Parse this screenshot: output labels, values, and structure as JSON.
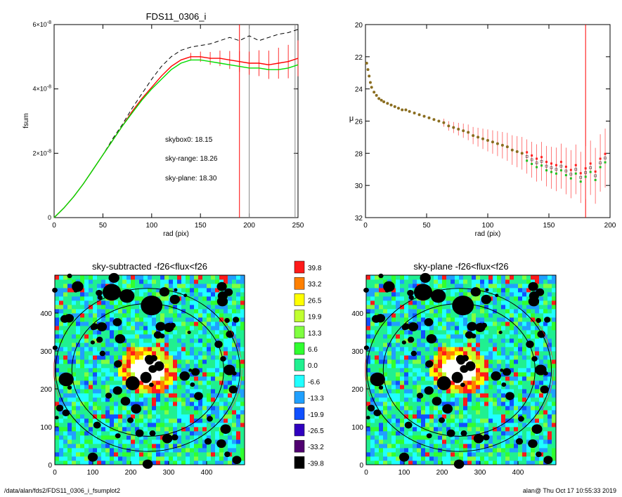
{
  "footer": {
    "path": "/data/alan/fds2/FDS11_0306_i_fsumplot2",
    "user": "alan@  Thu Oct 17 10:55:33 2019"
  },
  "colors": {
    "black": "#000000",
    "red": "#ff0000",
    "green": "#00dd00",
    "grey": "#888888",
    "olive": "#8a6d1f"
  },
  "chart_data": [
    {
      "type": "line",
      "title": "FDS11_0306_i",
      "xlabel": "rad (pix)",
      "ylabel": "fsum",
      "xlim": [
        0,
        250
      ],
      "ylim": [
        0,
        6e-08
      ],
      "x_ticks": [
        "0",
        "50",
        "100",
        "150",
        "200",
        "250"
      ],
      "y_ticks": [
        {
          "value": 0,
          "base": "0",
          "exp": ""
        },
        {
          "value": 2e-08,
          "base": "2×10",
          "exp": "-8"
        },
        {
          "value": 4e-08,
          "base": "4×10",
          "exp": "-8"
        },
        {
          "value": 6e-08,
          "base": "6×10",
          "exp": "-8"
        }
      ],
      "annotations": [
        {
          "text": "skybox0: 18.15",
          "color": "#000000"
        },
        {
          "text": "sky-range: 18.26",
          "color": "#ff0000"
        },
        {
          "text": "sky-plane: 18.30",
          "color": "#00cc00"
        }
      ],
      "vlines": [
        {
          "x": 190,
          "color": "#ff0000"
        },
        {
          "x": 200,
          "color": "#888888"
        },
        {
          "x": 247,
          "color": "#888888"
        }
      ],
      "series": [
        {
          "style": "dashed",
          "color": "#000000",
          "x": [
            0,
            10,
            20,
            30,
            40,
            50,
            60,
            70,
            80,
            90,
            100,
            110,
            120,
            130,
            140,
            150,
            160,
            170,
            180,
            190,
            200,
            210,
            220,
            230,
            240,
            250
          ],
          "y": [
            0,
            3e-09,
            6.5e-09,
            1.05e-08,
            1.5e-08,
            1.95e-08,
            2.45e-08,
            2.9e-08,
            3.4e-08,
            3.85e-08,
            4.3e-08,
            4.7e-08,
            5e-08,
            5.2e-08,
            5.3e-08,
            5.35e-08,
            5.4e-08,
            5.5e-08,
            5.6e-08,
            5.5e-08,
            5.65e-08,
            5.5e-08,
            5.6e-08,
            5.7e-08,
            5.75e-08,
            5.85e-08
          ]
        },
        {
          "style": "solid",
          "color": "#ff0000",
          "x": [
            0,
            10,
            20,
            30,
            40,
            50,
            60,
            70,
            80,
            90,
            100,
            110,
            120,
            130,
            140,
            150,
            160,
            170,
            180,
            190,
            200,
            210,
            220,
            230,
            240,
            250
          ],
          "y": [
            0,
            3e-09,
            6.5e-09,
            1.05e-08,
            1.5e-08,
            1.95e-08,
            2.4e-08,
            2.85e-08,
            3.3e-08,
            3.7e-08,
            4.05e-08,
            4.4e-08,
            4.7e-08,
            4.9e-08,
            5e-08,
            5e-08,
            4.95e-08,
            4.95e-08,
            4.9e-08,
            4.85e-08,
            4.8e-08,
            4.8e-08,
            4.75e-08,
            4.8e-08,
            4.85e-08,
            4.95e-08
          ]
        },
        {
          "style": "solid",
          "color": "#00dd00",
          "x": [
            0,
            10,
            20,
            30,
            40,
            50,
            60,
            70,
            80,
            90,
            100,
            110,
            120,
            130,
            140,
            150,
            160,
            170,
            180,
            190,
            200,
            210,
            220,
            230,
            240,
            250
          ],
          "y": [
            0,
            3e-09,
            6.5e-09,
            1.05e-08,
            1.5e-08,
            1.95e-08,
            2.4e-08,
            2.85e-08,
            3.25e-08,
            3.65e-08,
            4e-08,
            4.3e-08,
            4.6e-08,
            4.8e-08,
            4.9e-08,
            4.9e-08,
            4.85e-08,
            4.8e-08,
            4.75e-08,
            4.7e-08,
            4.65e-08,
            4.65e-08,
            4.6e-08,
            4.6e-08,
            4.65e-08,
            4.75e-08
          ]
        }
      ]
    },
    {
      "type": "scatter",
      "title": "",
      "xlabel": "rad (pix)",
      "ylabel": "μ",
      "xlim": [
        0,
        200
      ],
      "ylim": [
        32,
        20
      ],
      "x_ticks": [
        "0",
        "50",
        "100",
        "150",
        "200"
      ],
      "y_ticks": [
        "20",
        "22",
        "24",
        "26",
        "28",
        "30",
        "32"
      ],
      "vlines": [
        {
          "x": 180,
          "color": "#ff0000"
        }
      ],
      "points": {
        "x": [
          1,
          2,
          3,
          4,
          5,
          7,
          9,
          11,
          13,
          15,
          18,
          21,
          24,
          27,
          30,
          33,
          36,
          40,
          44,
          48,
          52,
          56,
          60,
          64,
          68,
          72,
          76,
          80,
          84,
          88,
          92,
          96,
          100,
          104,
          108,
          112,
          116,
          120,
          124,
          128,
          132,
          136,
          140,
          144,
          148,
          152,
          156,
          160,
          164,
          168,
          172,
          176,
          180,
          184,
          188,
          192,
          196
        ],
        "y": [
          22.4,
          22.8,
          23.2,
          23.6,
          23.9,
          24.2,
          24.4,
          24.6,
          24.7,
          24.8,
          24.9,
          25.0,
          25.1,
          25.2,
          25.3,
          25.3,
          25.4,
          25.5,
          25.6,
          25.7,
          25.8,
          25.9,
          26.0,
          26.1,
          26.3,
          26.4,
          26.5,
          26.6,
          26.7,
          26.9,
          27.0,
          27.1,
          27.2,
          27.3,
          27.4,
          27.5,
          27.6,
          27.8,
          27.9,
          28.0,
          28.2,
          28.4,
          28.6,
          28.5,
          28.8,
          28.9,
          29.0,
          28.8,
          29.1,
          29.3,
          29.0,
          29.5,
          29.2,
          28.9,
          29.4,
          28.6,
          28.3
        ]
      }
    },
    {
      "type": "heatmap",
      "title": "sky-subtracted -f26<flux<f26",
      "xlim": [
        0,
        500
      ],
      "ylim": [
        0,
        500
      ],
      "x_ticks": [
        "0",
        "100",
        "200",
        "300",
        "400"
      ],
      "y_ticks": [
        "0",
        "100",
        "200",
        "300",
        "400"
      ]
    },
    {
      "type": "heatmap",
      "title": "sky-plane -f26<flux<f26",
      "xlim": [
        0,
        500
      ],
      "ylim": [
        0,
        500
      ],
      "x_ticks": [
        "0",
        "100",
        "200",
        "300",
        "400"
      ],
      "y_ticks": [
        "0",
        "100",
        "200",
        "300",
        "400"
      ]
    }
  ],
  "colorbar": {
    "levels": [
      "39.8",
      "33.2",
      "26.5",
      "19.9",
      "13.3",
      "6.6",
      "0.0",
      "-6.6",
      "-13.3",
      "-19.9",
      "-26.5",
      "-33.2",
      "-39.8"
    ],
    "colors": [
      "#ff1a1a",
      "#ff8000",
      "#ffff00",
      "#c0ff30",
      "#80ff40",
      "#30ff30",
      "#20f090",
      "#20ffff",
      "#20a0ff",
      "#1050ff",
      "#3000c0",
      "#500070",
      "#000000"
    ]
  }
}
